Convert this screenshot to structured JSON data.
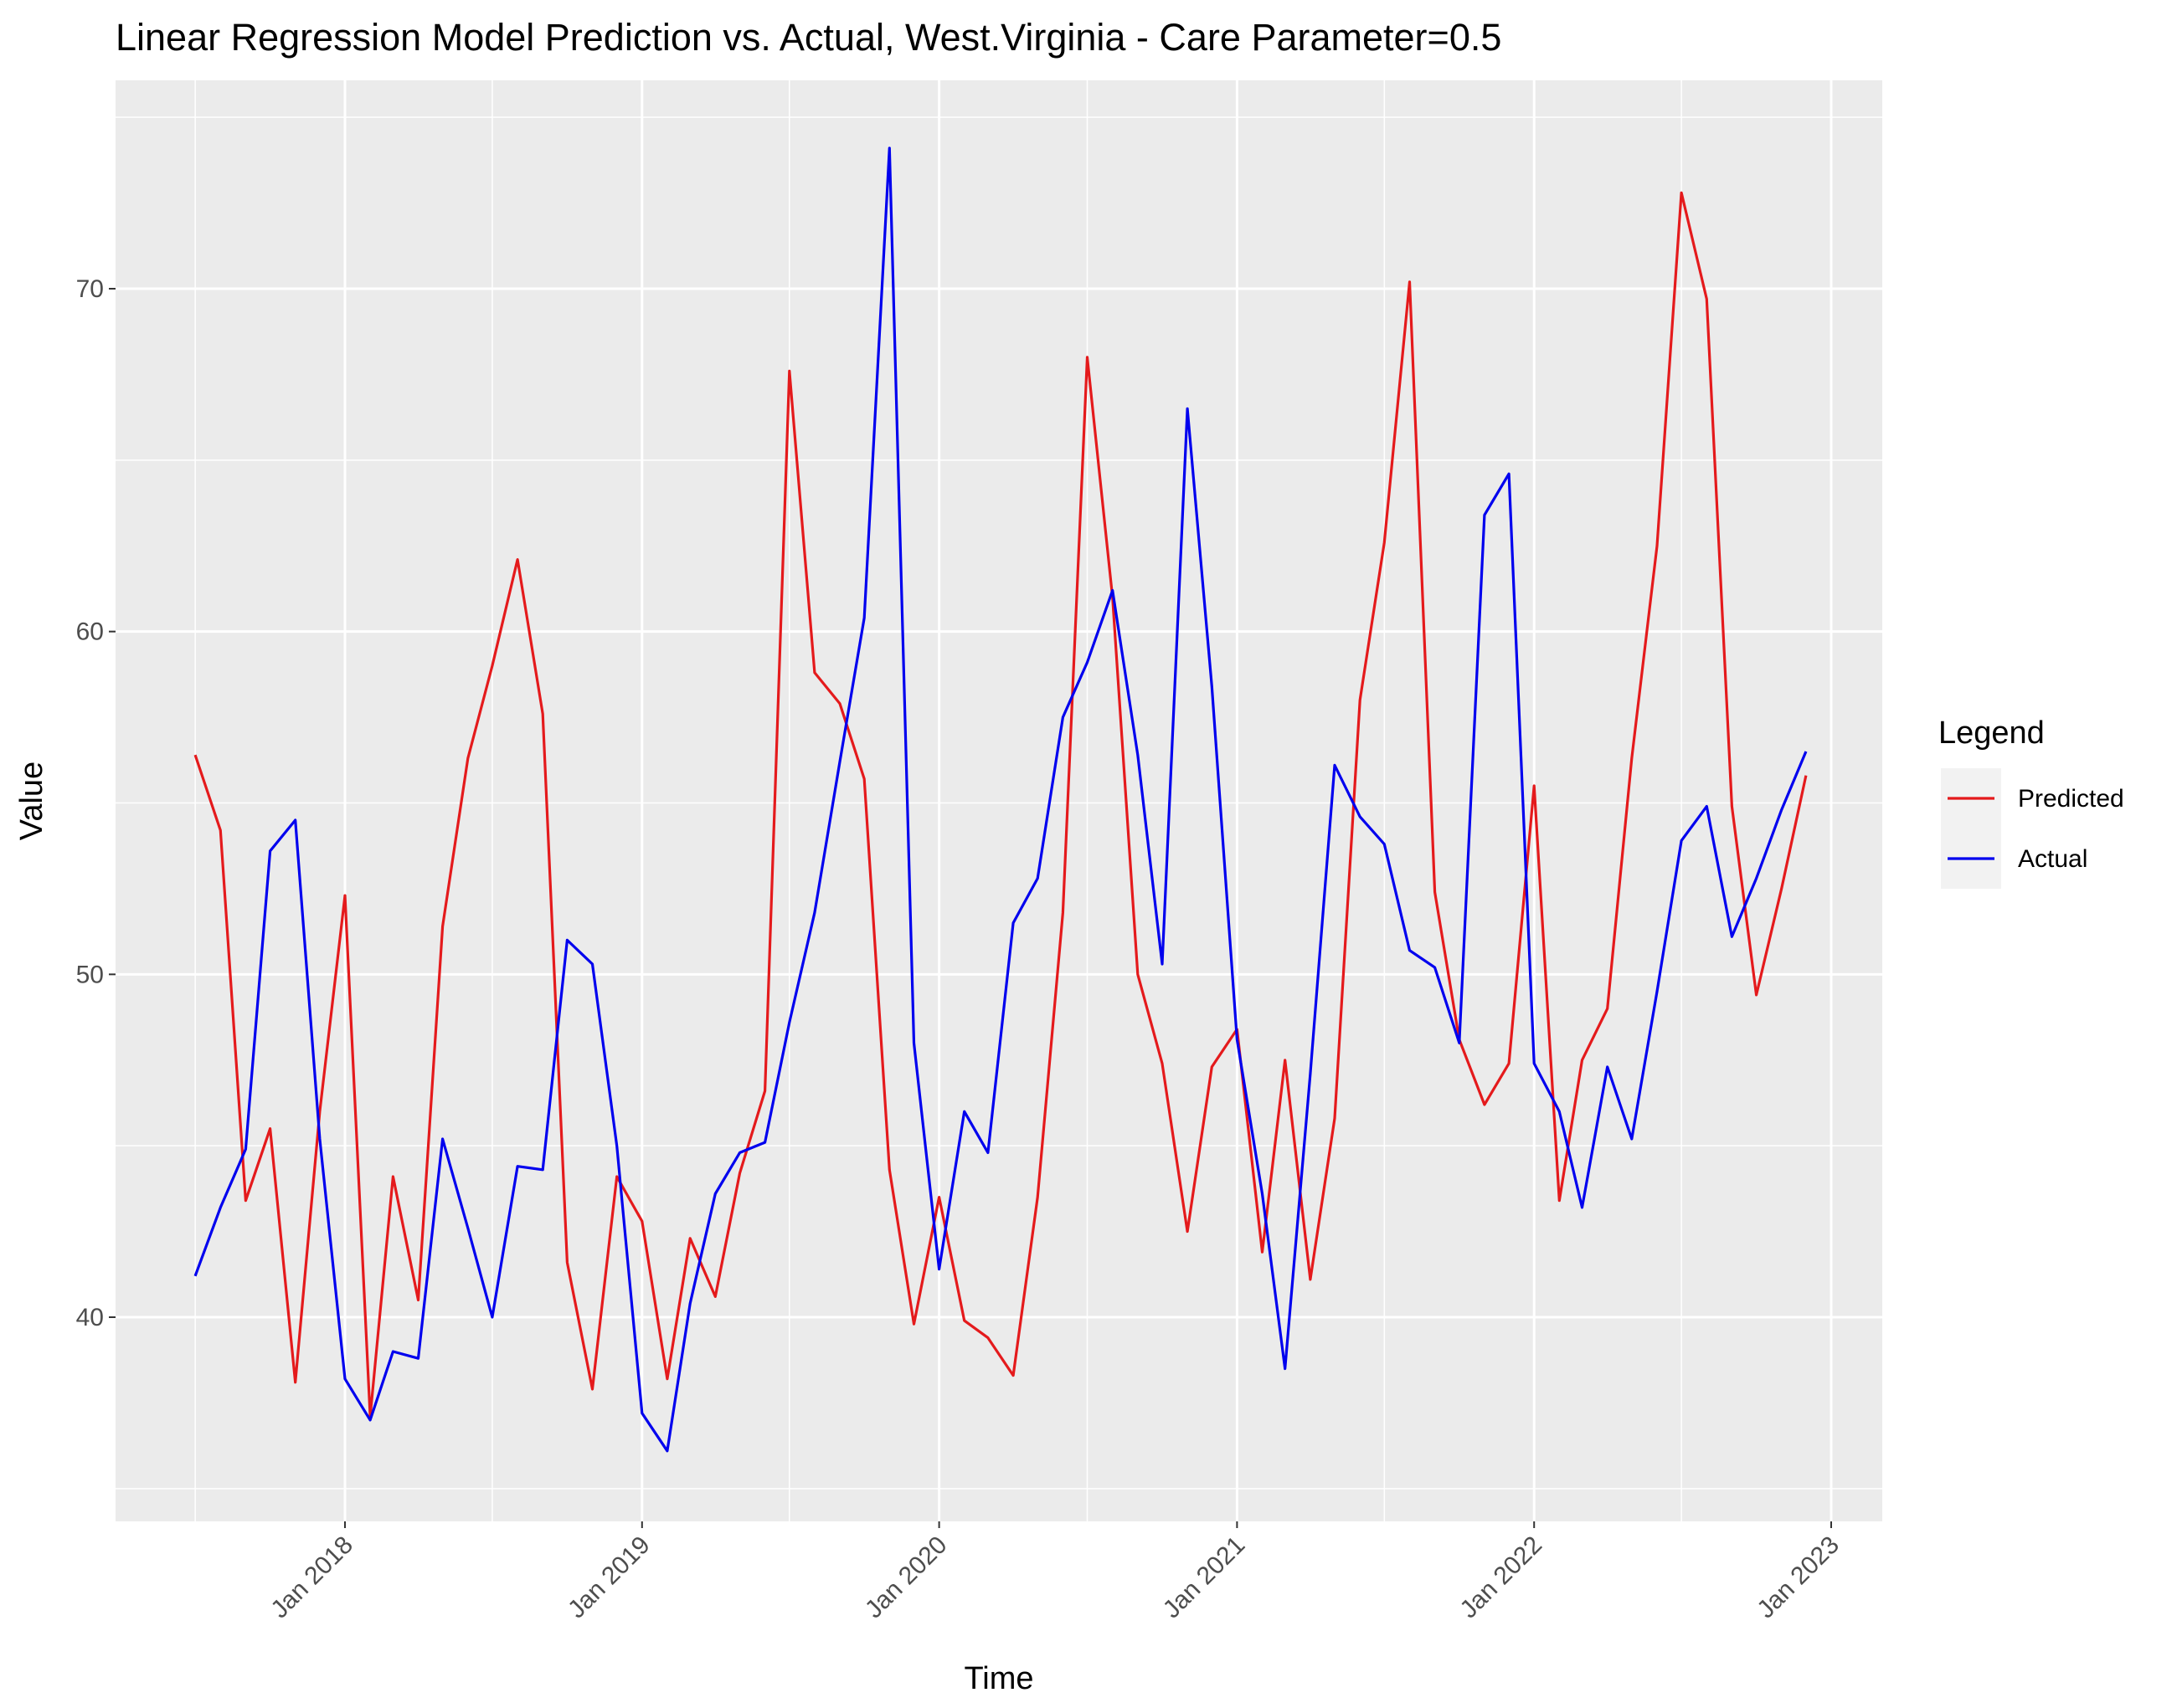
{
  "chart_data": {
    "type": "line",
    "title": "Linear Regression Model Prediction vs. Actual, West.Virginia - Care Parameter=0.5",
    "xlabel": "Time",
    "ylabel": "Value",
    "x": [
      "2017-07",
      "2017-08",
      "2017-09",
      "2017-10",
      "2017-11",
      "2017-12",
      "2018-01",
      "2018-02",
      "2018-03",
      "2018-04",
      "2018-05",
      "2018-06",
      "2018-07",
      "2018-08",
      "2018-09",
      "2018-10",
      "2018-11",
      "2018-12",
      "2019-01",
      "2019-02",
      "2019-03",
      "2019-04",
      "2019-05",
      "2019-06",
      "2019-07",
      "2019-08",
      "2019-09",
      "2019-10",
      "2019-11",
      "2019-12",
      "2020-01",
      "2020-02",
      "2020-03",
      "2020-04",
      "2020-05",
      "2020-06",
      "2020-07",
      "2020-08",
      "2020-09",
      "2020-10",
      "2020-11",
      "2020-12",
      "2021-01",
      "2021-02",
      "2021-03",
      "2021-04",
      "2021-05",
      "2021-06",
      "2021-07",
      "2021-08",
      "2021-09",
      "2021-10",
      "2021-11",
      "2021-12",
      "2022-01",
      "2022-02",
      "2022-03",
      "2022-04",
      "2022-05",
      "2022-06",
      "2022-07",
      "2022-08",
      "2022-09",
      "2022-10",
      "2022-11",
      "2022-12"
    ],
    "series": [
      {
        "name": "Predicted",
        "color": "#e41a1c",
        "values": [
          56.4,
          54.2,
          43.4,
          45.5,
          38.1,
          46.0,
          52.3,
          37.1,
          44.1,
          40.5,
          51.4,
          56.3,
          59.0,
          62.1,
          57.6,
          41.6,
          37.9,
          44.1,
          42.8,
          38.2,
          42.3,
          40.6,
          44.2,
          46.6,
          67.6,
          58.8,
          57.9,
          55.7,
          44.3,
          39.8,
          43.5,
          39.9,
          39.4,
          38.3,
          43.5,
          51.8,
          68.0,
          61.0,
          50.0,
          47.4,
          42.5,
          47.3,
          48.4,
          41.9,
          47.5,
          41.1,
          45.8,
          58.0,
          62.6,
          70.2,
          52.4,
          48.1,
          46.2,
          47.4,
          55.5,
          43.4,
          47.5,
          49.0,
          56.3,
          62.5,
          72.8,
          69.7,
          54.9,
          49.4,
          52.5,
          55.8
        ]
      },
      {
        "name": "Actual",
        "color": "#0000ee",
        "values": [
          41.2,
          43.2,
          44.9,
          53.6,
          54.5,
          45.2,
          38.2,
          37.0,
          39.0,
          38.8,
          45.2,
          42.6,
          40.0,
          44.4,
          44.3,
          51.0,
          50.3,
          45.0,
          37.2,
          36.1,
          40.4,
          43.6,
          44.8,
          45.1,
          48.6,
          51.8,
          56.2,
          60.4,
          74.1,
          48.0,
          41.4,
          46.0,
          44.8,
          51.5,
          52.8,
          57.5,
          59.1,
          61.2,
          56.4,
          50.3,
          66.5,
          58.4,
          48.1,
          43.6,
          38.5,
          47.1,
          56.1,
          54.6,
          53.8,
          50.7,
          50.2,
          48.0,
          63.4,
          64.6,
          47.4,
          46.0,
          43.2,
          47.3,
          45.2,
          49.5,
          53.9,
          54.9,
          51.1,
          52.8,
          54.8,
          56.5
        ]
      }
    ],
    "x_ticks": [
      "Jan 2018",
      "Jan 2019",
      "Jan 2020",
      "Jan 2021",
      "Jan 2022",
      "Jan 2023"
    ],
    "y_ticks": [
      "40",
      "50",
      "60",
      "70"
    ],
    "ylim": [
      34.5,
      75.5
    ],
    "grid": true,
    "legend": {
      "title": "Legend",
      "placement": "right",
      "entries": [
        "Predicted",
        "Actual"
      ]
    },
    "plot_background": "#ebebeb",
    "grid_color": "#ffffff"
  }
}
